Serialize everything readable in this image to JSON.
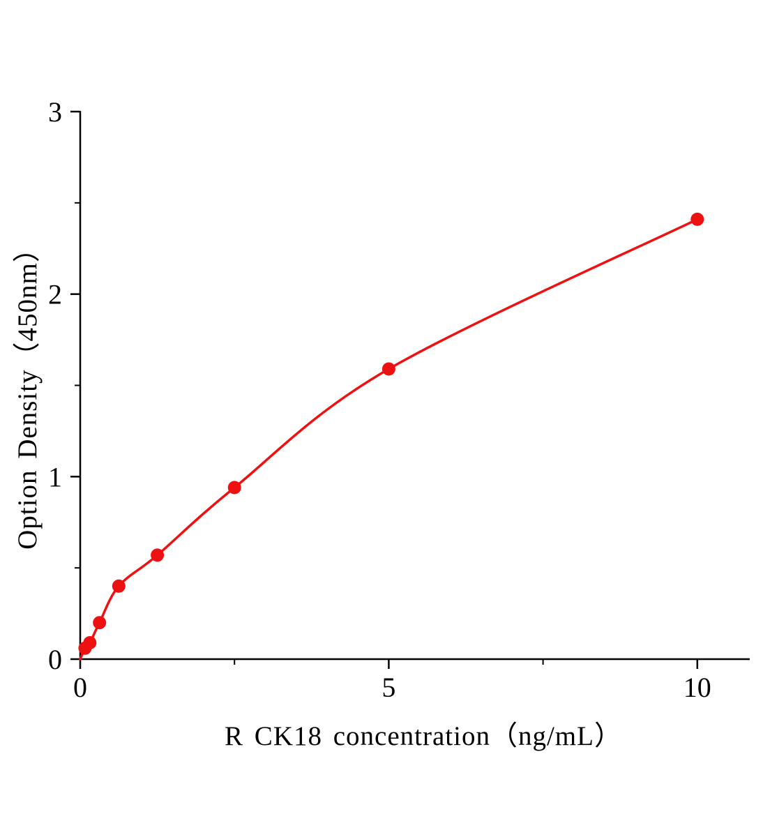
{
  "figure": {
    "background": "#ffffff"
  },
  "chart_data": {
    "type": "scatter",
    "title": "",
    "xlabel": "R CK18 concentration（ng/mL）",
    "ylabel": "Option Density（450nm）",
    "x": [
      0.078,
      0.156,
      0.313,
      0.625,
      1.25,
      2.5,
      5,
      10
    ],
    "y": [
      0.06,
      0.09,
      0.2,
      0.4,
      0.57,
      0.94,
      1.59,
      2.41
    ],
    "curve_start": [
      0,
      0
    ],
    "xlim": [
      0,
      10.85
    ],
    "ylim": [
      0,
      3
    ],
    "x_ticks": [
      0,
      5,
      10
    ],
    "x_minor_ticks": [
      2.5,
      7.5
    ],
    "y_ticks": [
      0,
      1,
      2,
      3
    ],
    "y_minor_ticks": [
      0.5,
      1.5,
      2.5
    ],
    "grid": false,
    "legend": false,
    "colors": {
      "series": "#ee1111",
      "axis": "#000000",
      "text": "#000000"
    }
  }
}
